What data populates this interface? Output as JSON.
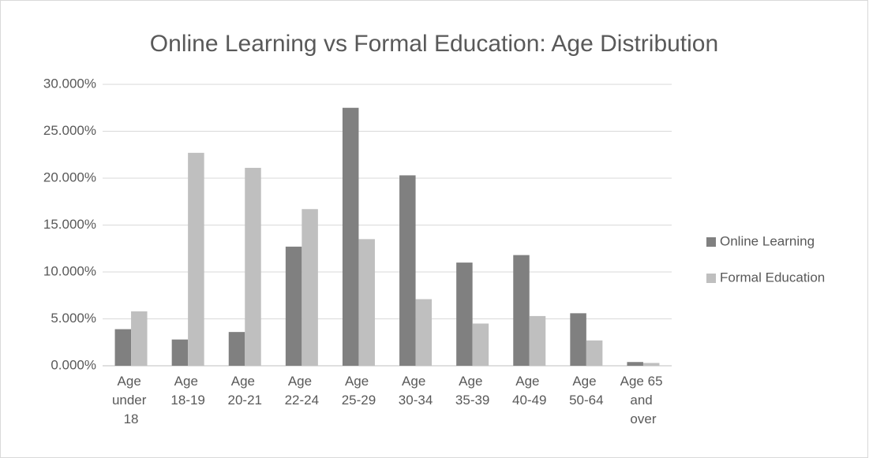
{
  "chart_data": {
    "type": "bar",
    "title": "Online Learning vs Formal Education: Age Distribution",
    "categories": [
      "Age under 18",
      "Age 18-19",
      "Age 20-21",
      "Age 22-24",
      "Age 25-29",
      "Age 30-34",
      "Age 35-39",
      "Age 40-49",
      "Age 50-64",
      "Age 65 and over"
    ],
    "series": [
      {
        "name": "Online Learning",
        "color": "#808080",
        "values": [
          3.9,
          2.8,
          3.6,
          12.7,
          27.5,
          20.3,
          11.0,
          11.8,
          5.6,
          0.4
        ]
      },
      {
        "name": "Formal Education",
        "color": "#bfbfbf",
        "values": [
          5.8,
          22.7,
          21.1,
          16.7,
          13.5,
          7.1,
          4.5,
          5.3,
          2.7,
          0.3
        ]
      }
    ],
    "ylim": [
      0,
      30
    ],
    "yticks": [
      {
        "value": 0,
        "label": "0.000%"
      },
      {
        "value": 5,
        "label": "5.000%"
      },
      {
        "value": 10,
        "label": "10.000%"
      },
      {
        "value": 15,
        "label": "15.000%"
      },
      {
        "value": 20,
        "label": "20.000%"
      },
      {
        "value": 25,
        "label": "25.000%"
      },
      {
        "value": 30,
        "label": "30.000%"
      }
    ],
    "grid": true,
    "legend": "right"
  }
}
